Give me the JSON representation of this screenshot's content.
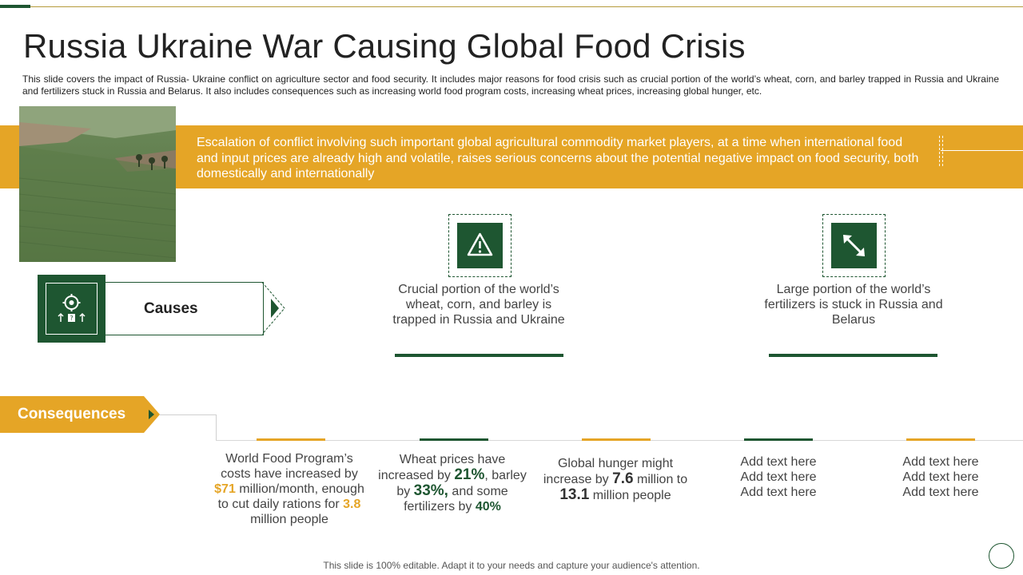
{
  "slide": {
    "title": "Russia Ukraine War Causing Global Food Crisis",
    "subtitle": "This slide covers the impact of Russia- Ukraine conflict on agriculture sector and food security. It includes major reasons for food crisis such as crucial portion of the world’s wheat, corn, and barley trapped in Russia and Ukraine and fertilizers stuck in Russia and Belarus. It also includes consequences such as increasing world food program costs, increasing wheat prices, increasing global hunger, etc.",
    "banner_text": "Escalation of conflict involving such important global agricultural commodity market players, at a time when international food and input prices are already high and volatile, raises serious concerns about the potential negative impact on food security, both domestically and internationally",
    "footer": "This slide is 100% editable. Adapt it to your needs and capture your audience's attention."
  },
  "causes": {
    "label": "Causes",
    "items": [
      {
        "icon": "warning-icon",
        "text": "Crucial portion of the world’s wheat, corn, and barley is trapped in Russia and Ukraine"
      },
      {
        "icon": "expand-arrows-icon",
        "text": "Large portion of the world’s fertilizers is stuck in Russia and Belarus"
      }
    ]
  },
  "consequences": {
    "label": "Consequences",
    "wfp": {
      "a": "World Food Program’s costs have increased by ",
      "n1": "$71",
      "b": " million/month,  enough to cut daily rations for ",
      "n2": "3.8",
      "c": " million people"
    },
    "wheat": {
      "a": "Wheat prices have increased by ",
      "n1": "21%",
      "b": ", barley by ",
      "n2": "33%,",
      "c": " and some fertilizers by ",
      "n3": "40%"
    },
    "hunger": {
      "a": "Global hunger might increase by ",
      "n1": "7.6",
      "b": " million to ",
      "n2": "13.1",
      "c": " million people"
    },
    "placeholders": [
      [
        "Add text here",
        "Add text here",
        "Add text here"
      ],
      [
        "Add text here",
        "Add text here",
        "Add text here"
      ]
    ]
  },
  "colors": {
    "green": "#1e5631",
    "orange": "#e5a526"
  }
}
